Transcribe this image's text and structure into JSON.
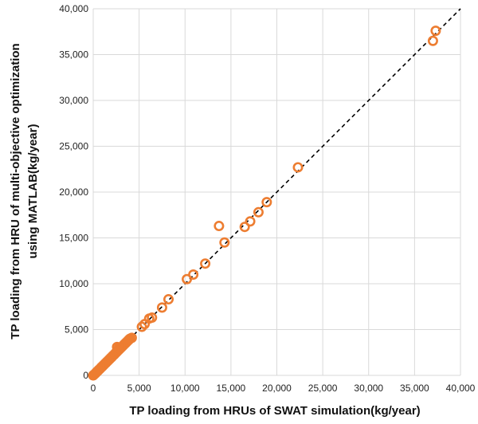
{
  "chart_data": {
    "type": "scatter",
    "title": "",
    "xlabel": "TP loading from HRUs of SWAT simulation(kg/year)",
    "ylabel_lines": [
      "TP loading from HRU of multi-objective optimization",
      "using MATLAB(kg/year)"
    ],
    "xlim": [
      0,
      40000
    ],
    "ylim": [
      0,
      40000
    ],
    "xticks": [
      0,
      5000,
      10000,
      15000,
      20000,
      25000,
      30000,
      35000,
      40000
    ],
    "yticks": [
      0,
      5000,
      10000,
      15000,
      20000,
      25000,
      30000,
      35000,
      40000
    ],
    "x_tick_labels": [
      "0",
      "5,000",
      "10,000",
      "15,000",
      "20,000",
      "25,000",
      "30,000",
      "35,000",
      "40,000"
    ],
    "y_tick_labels": [
      "0",
      "5,000",
      "10,000",
      "15,000",
      "20,000",
      "25,000",
      "30,000",
      "35,000",
      "40,000"
    ],
    "grid": true,
    "legend": "none",
    "reference_line": {
      "style": "dashed",
      "color": "#000000",
      "points": [
        [
          0,
          0
        ],
        [
          40000,
          40000
        ]
      ]
    },
    "marker_color": "#ED7D31",
    "points": [
      [
        0,
        0
      ],
      [
        100,
        100
      ],
      [
        200,
        180
      ],
      [
        300,
        280
      ],
      [
        400,
        400
      ],
      [
        500,
        480
      ],
      [
        600,
        600
      ],
      [
        700,
        680
      ],
      [
        800,
        780
      ],
      [
        900,
        900
      ],
      [
        1000,
        980
      ],
      [
        1100,
        1100
      ],
      [
        1200,
        1180
      ],
      [
        1300,
        1300
      ],
      [
        1400,
        1380
      ],
      [
        1500,
        1500
      ],
      [
        1600,
        1580
      ],
      [
        1700,
        1700
      ],
      [
        1800,
        1780
      ],
      [
        1900,
        1900
      ],
      [
        2000,
        1980
      ],
      [
        2100,
        2100
      ],
      [
        2200,
        2200
      ],
      [
        2300,
        2280
      ],
      [
        2400,
        2400
      ],
      [
        2500,
        2500
      ],
      [
        2600,
        2600
      ],
      [
        2700,
        2700
      ],
      [
        2800,
        2800
      ],
      [
        2900,
        2900
      ],
      [
        3000,
        3000
      ],
      [
        3100,
        3100
      ],
      [
        3200,
        3200
      ],
      [
        3300,
        3300
      ],
      [
        3400,
        3400
      ],
      [
        3500,
        3500
      ],
      [
        3600,
        3600
      ],
      [
        3700,
        3700
      ],
      [
        3800,
        3800
      ],
      [
        3900,
        3900
      ],
      [
        4000,
        4000
      ],
      [
        4200,
        4100
      ],
      [
        2600,
        3100
      ],
      [
        2800,
        3000
      ],
      [
        5300,
        5300
      ],
      [
        5600,
        5600
      ],
      [
        6100,
        6200
      ],
      [
        6400,
        6300
      ],
      [
        7500,
        7400
      ],
      [
        8200,
        8300
      ],
      [
        10200,
        10500
      ],
      [
        10900,
        11000
      ],
      [
        12200,
        12200
      ],
      [
        13700,
        16300
      ],
      [
        14300,
        14500
      ],
      [
        16500,
        16200
      ],
      [
        17100,
        16800
      ],
      [
        18000,
        17800
      ],
      [
        18900,
        18900
      ],
      [
        22300,
        22700
      ],
      [
        37000,
        36500
      ],
      [
        37300,
        37600
      ]
    ]
  }
}
